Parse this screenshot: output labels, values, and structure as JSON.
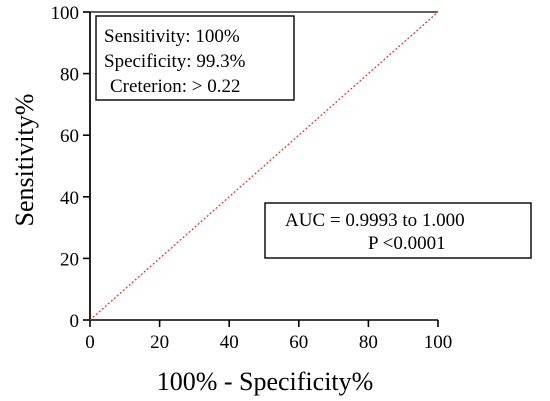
{
  "chart_data": {
    "type": "line",
    "xlabel": "100% - Specificity%",
    "ylabel": "Sensitivity%",
    "xlim": [
      0,
      100
    ],
    "ylim": [
      0,
      100
    ],
    "xticks": [
      0,
      20,
      40,
      60,
      80,
      100
    ],
    "yticks": [
      0,
      20,
      40,
      60,
      80,
      100
    ],
    "grid": false,
    "series": [
      {
        "x": [
          0,
          0,
          0.7,
          100
        ],
        "y": [
          0,
          100,
          100,
          100
        ],
        "color": "#000000",
        "style": "solid"
      },
      {
        "x": [
          0,
          100
        ],
        "y": [
          0,
          100
        ],
        "color": "#e0322b",
        "style": "dotted"
      }
    ],
    "annotations": {
      "stats": [
        "Sensitivity: 100%",
        "Specificity: 99.3%",
        "Creterion: > 0.22"
      ],
      "auc": [
        "AUC = 0.9993 to 1.000",
        "P <0.0001"
      ]
    }
  }
}
